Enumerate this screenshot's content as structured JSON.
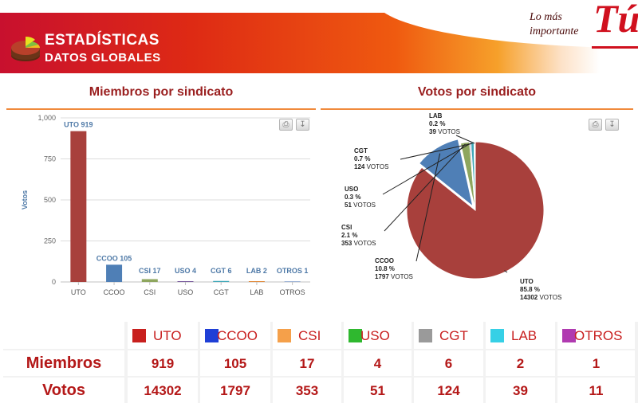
{
  "header": {
    "title": "ESTADÍSTICAS",
    "subtitle": "DATOS GLOBALES",
    "brand_line1": "Lo más",
    "brand_line2": "importante",
    "brand_big": "Tú"
  },
  "colors": {
    "brand_red": "#d0101e",
    "accent_orange": "#f08a3c",
    "bar_uto": "#a8403c",
    "bar_ccoo": "#4f7fb6",
    "bar_csi": "#8ea65e",
    "label_blue": "#4e79a7"
  },
  "panels": {
    "left_title": "Miembros por sindicato",
    "right_title": "Votos por sindicato"
  },
  "icons": {
    "print": "printer-icon",
    "download": "download-icon",
    "stats": "pie-chart-icon"
  },
  "chart_data": [
    {
      "type": "bar",
      "title": "Miembros por sindicato",
      "ylabel": "Votos",
      "xlabel": "",
      "ylim": [
        0,
        1000
      ],
      "yticks": [
        "0",
        "250",
        "500",
        "750",
        "1,000"
      ],
      "categories": [
        "UTO",
        "CCOO",
        "CSI",
        "USO",
        "CGT",
        "LAB",
        "OTROS"
      ],
      "values": [
        919,
        105,
        17,
        4,
        6,
        2,
        1
      ],
      "data_labels": [
        "UTO 919",
        "CCOO 105",
        "CSI 17",
        "USO 4",
        "CGT 6",
        "LAB 2",
        "OTROS 1"
      ],
      "grid": true
    },
    {
      "type": "pie",
      "title": "Votos por sindicato",
      "slices": [
        {
          "name": "UTO",
          "pct": "85.8 %",
          "value": 14302,
          "votes": "14302",
          "color": "#a8403c"
        },
        {
          "name": "CCOO",
          "pct": "10.8 %",
          "value": 1797,
          "votes": "1797",
          "color": "#4f7fb6"
        },
        {
          "name": "CSI",
          "pct": "2.1 %",
          "value": 353,
          "votes": "353",
          "color": "#8ea65e"
        },
        {
          "name": "USO",
          "pct": "0.3 %",
          "value": 51,
          "votes": "51",
          "color": "#7a5c9e"
        },
        {
          "name": "CGT",
          "pct": "0.7 %",
          "value": 124,
          "votes": "124",
          "color": "#3fa7b8"
        },
        {
          "name": "LAB",
          "pct": "0.2 %",
          "value": 39,
          "votes": "39",
          "color": "#e08a3a"
        },
        {
          "name": "OTROS",
          "pct": "",
          "value": 11,
          "votes": "11",
          "color": "#9fb4d6"
        }
      ],
      "votes_word": "VOTOS"
    }
  ],
  "table": {
    "legend": [
      {
        "label": "UTO",
        "color": "#c8201e"
      },
      {
        "label": "CCOO",
        "color": "#1f3fd6"
      },
      {
        "label": "CSI",
        "color": "#f5a04a"
      },
      {
        "label": "USO",
        "color": "#2fb82f"
      },
      {
        "label": "CGT",
        "color": "#9a9a9a"
      },
      {
        "label": "LAB",
        "color": "#36d0e6"
      },
      {
        "label": "OTROS",
        "color": "#b03ab0"
      }
    ],
    "rows": [
      {
        "label": "Miembros",
        "values": [
          "919",
          "105",
          "17",
          "4",
          "6",
          "2",
          "1"
        ]
      },
      {
        "label": "Votos",
        "values": [
          "14302",
          "1797",
          "353",
          "51",
          "124",
          "39",
          "11"
        ]
      }
    ]
  }
}
